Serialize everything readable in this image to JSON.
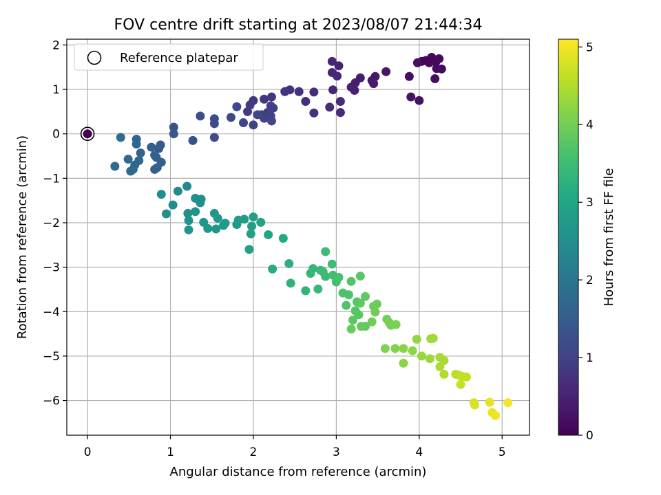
{
  "chart_data": {
    "type": "scatter",
    "title": "FOV centre drift starting at 2023/08/07 21:44:34",
    "xlabel": "Angular distance from reference (arcmin)",
    "ylabel": "Rotation from reference (arcmin)",
    "xlim": [
      -0.25,
      5.33
    ],
    "ylim": [
      -6.78,
      2.13
    ],
    "xticks": [
      0,
      1,
      2,
      3,
      4,
      5
    ],
    "yticks": [
      -6,
      -5,
      -4,
      -3,
      -2,
      -1,
      0,
      1,
      2
    ],
    "grid": true,
    "legend": {
      "position": "top-left",
      "entries": [
        "Reference platepar"
      ]
    },
    "reference_point": {
      "x": 0,
      "y": 0
    },
    "colorbar": {
      "label": "Hours from first FF file",
      "colormap": "viridis",
      "range": [
        0,
        5.1
      ],
      "ticks": [
        0,
        1,
        2,
        3,
        4,
        5
      ]
    },
    "points": [
      [
        0.0,
        0.0,
        0.0
      ],
      [
        4.03,
        1.63,
        0.05
      ],
      [
        4.08,
        1.65,
        0.07
      ],
      [
        4.12,
        1.6,
        0.08
      ],
      [
        4.15,
        1.72,
        0.1
      ],
      [
        4.2,
        1.62,
        0.12
      ],
      [
        4.24,
        1.69,
        0.13
      ],
      [
        4.21,
        1.47,
        0.15
      ],
      [
        4.27,
        1.46,
        0.16
      ],
      [
        4.19,
        1.24,
        0.18
      ],
      [
        3.98,
        1.6,
        0.2
      ],
      [
        3.88,
        1.29,
        0.22
      ],
      [
        4.0,
        0.75,
        0.24
      ],
      [
        3.9,
        0.83,
        0.26
      ],
      [
        3.6,
        1.4,
        0.3
      ],
      [
        3.47,
        1.29,
        0.33
      ],
      [
        3.43,
        1.2,
        0.35
      ],
      [
        3.45,
        1.13,
        0.37
      ],
      [
        3.29,
        1.26,
        0.4
      ],
      [
        3.23,
        1.15,
        0.42
      ],
      [
        3.18,
        1.05,
        0.44
      ],
      [
        3.22,
        0.98,
        0.46
      ],
      [
        3.03,
        1.53,
        0.5
      ],
      [
        2.95,
        1.63,
        0.52
      ],
      [
        2.95,
        1.38,
        0.54
      ],
      [
        3.01,
        1.3,
        0.56
      ],
      [
        2.96,
        0.99,
        0.58
      ],
      [
        3.05,
        0.73,
        0.6
      ],
      [
        3.05,
        0.48,
        0.62
      ],
      [
        2.92,
        0.6,
        0.64
      ],
      [
        2.73,
        0.94,
        0.66
      ],
      [
        2.63,
        0.73,
        0.68
      ],
      [
        2.73,
        0.47,
        0.7
      ],
      [
        2.55,
        0.95,
        0.72
      ],
      [
        2.44,
        0.99,
        0.74
      ],
      [
        2.38,
        0.95,
        0.76
      ],
      [
        2.22,
        0.83,
        0.8
      ],
      [
        2.13,
        0.78,
        0.82
      ],
      [
        2.0,
        0.75,
        0.84
      ],
      [
        1.96,
        0.65,
        0.86
      ],
      [
        1.93,
        0.5,
        0.88
      ],
      [
        2.1,
        0.43,
        0.9
      ],
      [
        2.17,
        0.48,
        0.92
      ],
      [
        2.21,
        0.63,
        0.94
      ],
      [
        2.24,
        0.58,
        0.96
      ],
      [
        2.21,
        0.4,
        0.98
      ],
      [
        2.13,
        0.35,
        1.0
      ],
      [
        2.0,
        0.2,
        1.02
      ],
      [
        1.88,
        0.25,
        1.04
      ],
      [
        2.22,
        0.29,
        1.06
      ],
      [
        2.05,
        0.43,
        1.08
      ],
      [
        1.8,
        0.61,
        1.1
      ],
      [
        1.73,
        0.37,
        1.12
      ],
      [
        1.53,
        0.34,
        1.16
      ],
      [
        1.53,
        0.23,
        1.18
      ],
      [
        1.53,
        -0.08,
        1.2
      ],
      [
        1.36,
        0.4,
        1.24
      ],
      [
        1.27,
        -0.15,
        1.28
      ],
      [
        1.04,
        0.15,
        1.32
      ],
      [
        1.04,
        0.0,
        1.36
      ],
      [
        0.88,
        -0.25,
        1.44
      ],
      [
        0.86,
        -0.33,
        1.48
      ],
      [
        0.83,
        -0.53,
        1.5
      ],
      [
        0.77,
        -0.3,
        1.52
      ],
      [
        0.81,
        -0.48,
        1.54
      ],
      [
        0.89,
        -0.64,
        1.56
      ],
      [
        0.84,
        -0.76,
        1.58
      ],
      [
        0.81,
        -0.8,
        1.6
      ],
      [
        0.64,
        -0.43,
        1.62
      ],
      [
        0.59,
        -0.12,
        1.64
      ],
      [
        0.59,
        -0.23,
        1.66
      ],
      [
        0.62,
        -0.6,
        1.68
      ],
      [
        0.57,
        -0.7,
        1.7
      ],
      [
        0.55,
        -0.8,
        1.72
      ],
      [
        0.49,
        -0.57,
        1.74
      ],
      [
        0.52,
        -0.84,
        1.76
      ],
      [
        0.4,
        -0.08,
        1.78
      ],
      [
        0.33,
        -0.73,
        1.8
      ],
      [
        1.2,
        -1.18,
        2.4
      ],
      [
        1.09,
        -1.29,
        2.44
      ],
      [
        1.03,
        -1.6,
        2.46
      ],
      [
        0.89,
        -1.36,
        2.48
      ],
      [
        0.95,
        -1.8,
        2.5
      ],
      [
        1.3,
        -1.45,
        2.52
      ],
      [
        1.37,
        -1.47,
        2.53
      ],
      [
        1.36,
        -1.55,
        2.54
      ],
      [
        1.21,
        -1.79,
        2.56
      ],
      [
        1.3,
        -1.75,
        2.58
      ],
      [
        1.22,
        -1.95,
        2.6
      ],
      [
        1.22,
        -2.16,
        2.62
      ],
      [
        1.4,
        -1.99,
        2.64
      ],
      [
        1.45,
        -2.13,
        2.66
      ],
      [
        1.55,
        -2.14,
        2.68
      ],
      [
        1.53,
        -1.79,
        2.7
      ],
      [
        1.57,
        -1.9,
        2.72
      ],
      [
        1.64,
        -2.06,
        2.74
      ],
      [
        1.66,
        -2.01,
        2.76
      ],
      [
        1.8,
        -2.04,
        2.78
      ],
      [
        1.82,
        -1.94,
        2.8
      ],
      [
        1.89,
        -1.92,
        2.82
      ],
      [
        1.98,
        -2.08,
        2.84
      ],
      [
        2.0,
        -1.87,
        2.86
      ],
      [
        1.97,
        -2.25,
        2.88
      ],
      [
        1.95,
        -2.6,
        2.9
      ],
      [
        2.09,
        -1.99,
        2.94
      ],
      [
        2.18,
        -2.27,
        2.98
      ],
      [
        2.36,
        -2.35,
        3.05
      ],
      [
        2.23,
        -3.04,
        3.12
      ],
      [
        2.43,
        -2.92,
        3.2
      ],
      [
        2.45,
        -3.36,
        3.25
      ],
      [
        2.63,
        -3.53,
        3.3
      ],
      [
        2.69,
        -3.14,
        3.35
      ],
      [
        2.72,
        -3.03,
        3.38
      ],
      [
        2.78,
        -3.49,
        3.4
      ],
      [
        2.81,
        -3.07,
        3.42
      ],
      [
        2.84,
        -3.1,
        3.44
      ],
      [
        2.87,
        -3.21,
        3.46
      ],
      [
        2.87,
        -2.65,
        3.48
      ],
      [
        2.95,
        -2.93,
        3.5
      ],
      [
        2.96,
        -3.18,
        3.52
      ],
      [
        3.0,
        -3.33,
        3.55
      ],
      [
        3.03,
        -3.23,
        3.58
      ],
      [
        3.08,
        -3.58,
        3.62
      ],
      [
        3.15,
        -3.62,
        3.66
      ],
      [
        3.12,
        -3.86,
        3.68
      ],
      [
        3.18,
        -3.32,
        3.7
      ],
      [
        3.23,
        -3.98,
        3.72
      ],
      [
        3.25,
        -3.78,
        3.74
      ],
      [
        3.27,
        -4.07,
        3.76
      ],
      [
        3.2,
        -4.19,
        3.78
      ],
      [
        3.29,
        -3.2,
        3.8
      ],
      [
        3.29,
        -3.81,
        3.82
      ],
      [
        3.35,
        -3.66,
        3.84
      ],
      [
        3.35,
        -4.33,
        3.86
      ],
      [
        3.3,
        -4.33,
        3.88
      ],
      [
        3.18,
        -4.39,
        3.9
      ],
      [
        3.45,
        -3.88,
        3.92
      ],
      [
        3.49,
        -3.83,
        3.94
      ],
      [
        3.47,
        -4.01,
        3.96
      ],
      [
        3.43,
        -4.23,
        3.98
      ],
      [
        3.61,
        -4.17,
        4.0
      ],
      [
        3.64,
        -4.25,
        4.02
      ],
      [
        3.66,
        -4.31,
        4.04
      ],
      [
        3.72,
        -4.29,
        4.06
      ],
      [
        3.59,
        -4.83,
        4.1
      ],
      [
        3.71,
        -4.83,
        4.14
      ],
      [
        3.81,
        -4.83,
        4.18
      ],
      [
        3.81,
        -5.16,
        4.2
      ],
      [
        3.92,
        -4.88,
        4.22
      ],
      [
        3.97,
        -4.62,
        4.26
      ],
      [
        4.03,
        -5.0,
        4.3
      ],
      [
        4.13,
        -5.06,
        4.34
      ],
      [
        4.14,
        -4.61,
        4.36
      ],
      [
        4.17,
        -4.6,
        4.38
      ],
      [
        4.25,
        -5.03,
        4.42
      ],
      [
        4.3,
        -5.1,
        4.44
      ],
      [
        4.25,
        -5.24,
        4.46
      ],
      [
        4.3,
        -5.41,
        4.5
      ],
      [
        4.44,
        -5.41,
        4.56
      ],
      [
        4.48,
        -5.43,
        4.6
      ],
      [
        4.52,
        -5.46,
        4.62
      ],
      [
        4.57,
        -5.47,
        4.64
      ],
      [
        4.5,
        -5.64,
        4.66
      ],
      [
        4.66,
        -6.05,
        4.78
      ],
      [
        4.67,
        -6.1,
        4.82
      ],
      [
        4.85,
        -6.04,
        4.9
      ],
      [
        4.88,
        -6.27,
        4.94
      ],
      [
        4.92,
        -6.34,
        4.98
      ],
      [
        5.07,
        -6.05,
        5.02
      ]
    ]
  }
}
